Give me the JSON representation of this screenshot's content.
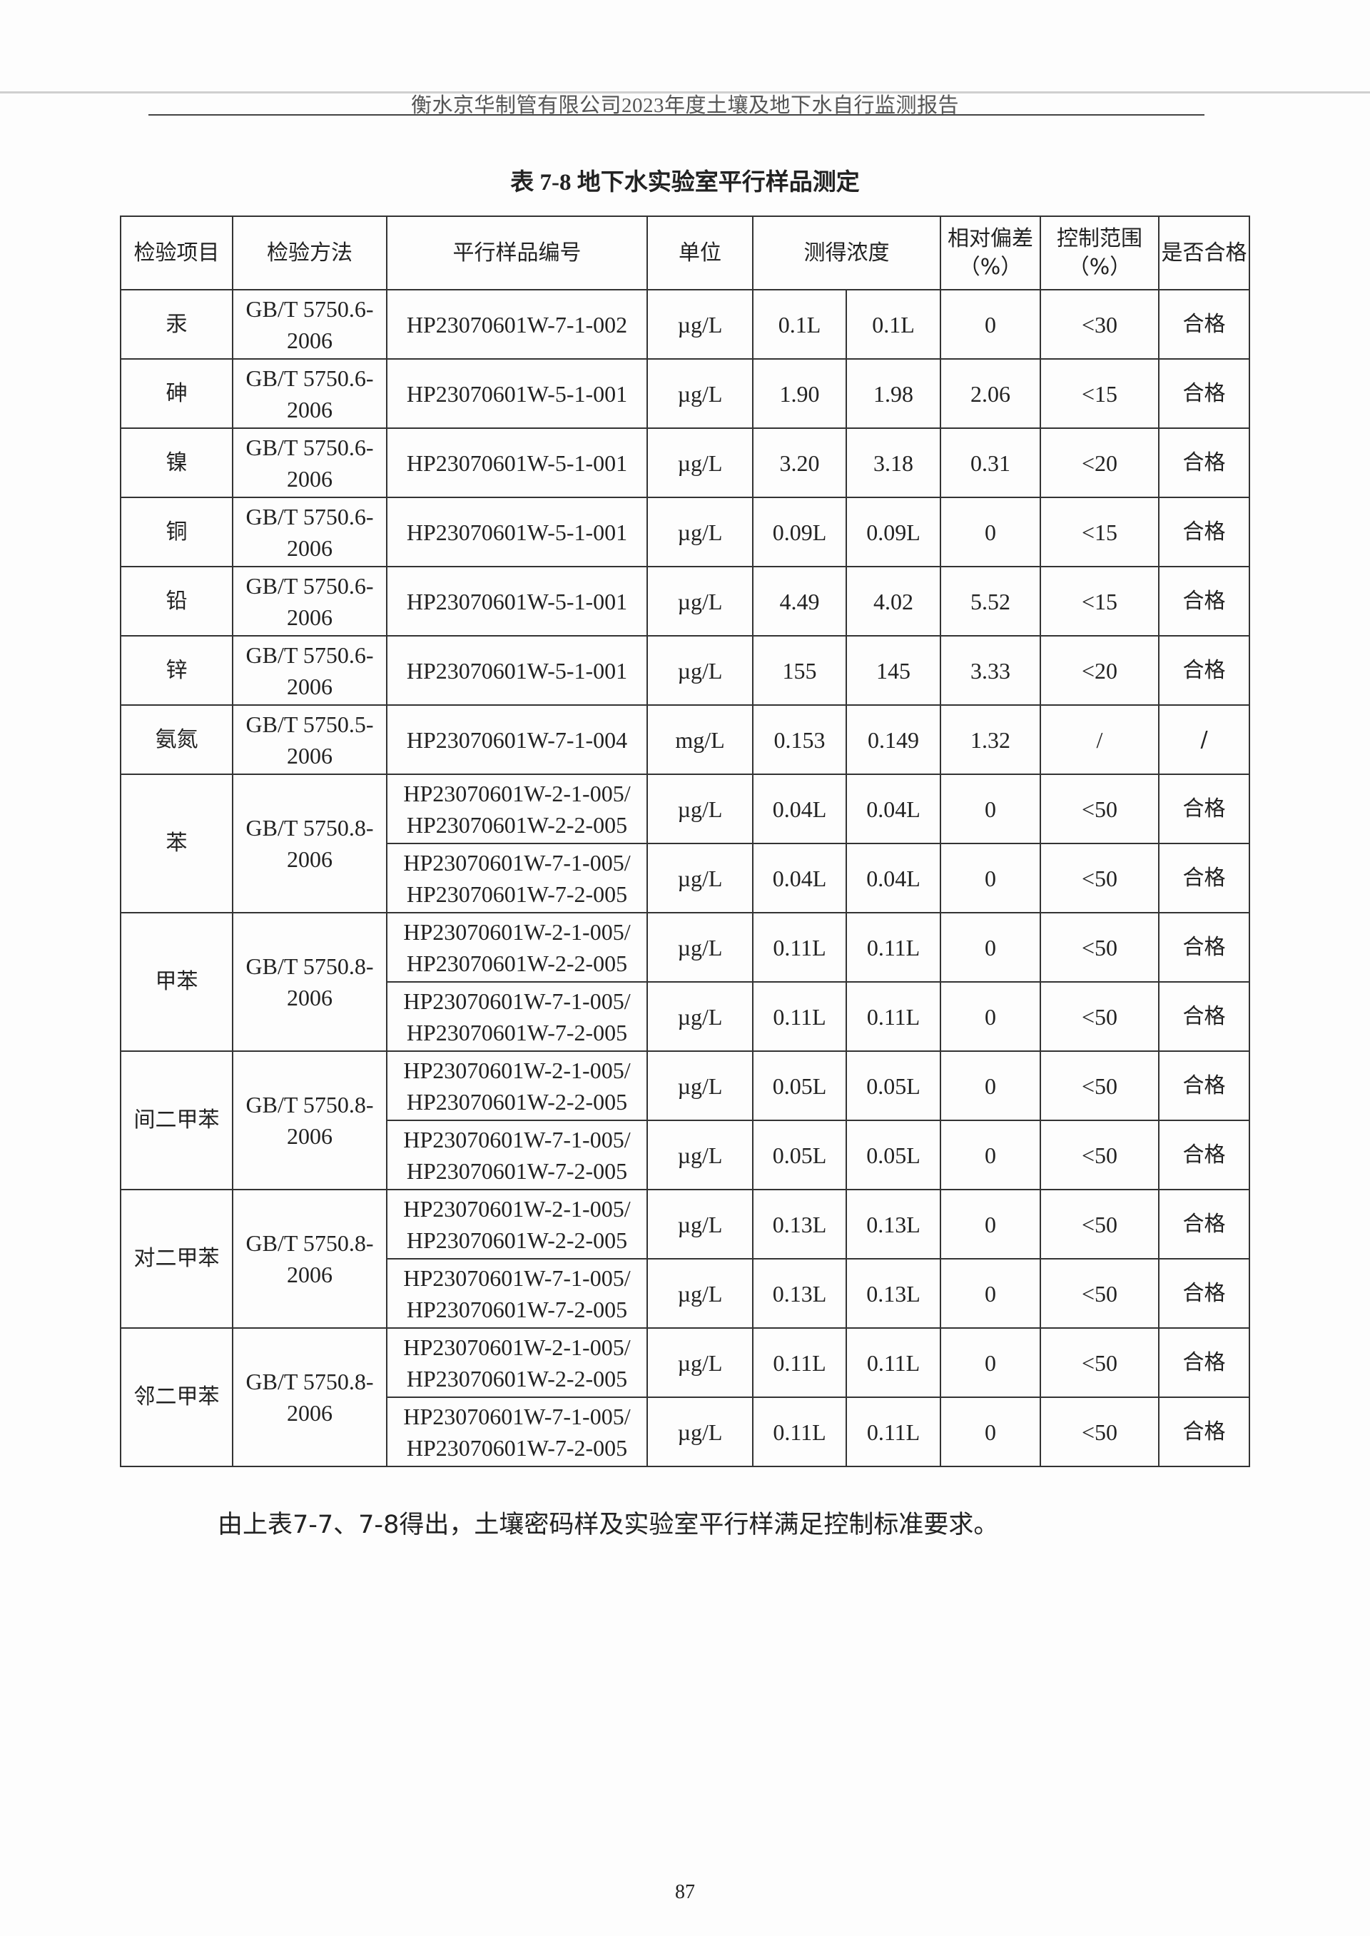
{
  "header": {
    "text": "衡水京华制管有限公司2023年度土壤及地下水自行监测报告"
  },
  "table": {
    "title": "表 7-8   地下水实验室平行样品测定",
    "columns": [
      "检验项目",
      "检验方法",
      "平行样品编号",
      "单位",
      "测得浓度",
      "相对偏差（%）",
      "控制范围（%）",
      "是否合格"
    ],
    "groups": [
      {
        "item": "汞",
        "method": "GB/T 5750.6-2006",
        "rows": [
          {
            "sample": "HP23070601W-7-1-002",
            "unit": "µg/L",
            "c1": "0.1L",
            "c2": "0.1L",
            "rd": "0",
            "range": "<30",
            "pass": "合格"
          }
        ]
      },
      {
        "item": "砷",
        "method": "GB/T 5750.6-2006",
        "rows": [
          {
            "sample": "HP23070601W-5-1-001",
            "unit": "µg/L",
            "c1": "1.90",
            "c2": "1.98",
            "rd": "2.06",
            "range": "<15",
            "pass": "合格"
          }
        ]
      },
      {
        "item": "镍",
        "method": "GB/T 5750.6-2006",
        "rows": [
          {
            "sample": "HP23070601W-5-1-001",
            "unit": "µg/L",
            "c1": "3.20",
            "c2": "3.18",
            "rd": "0.31",
            "range": "<20",
            "pass": "合格"
          }
        ]
      },
      {
        "item": "铜",
        "method": "GB/T 5750.6-2006",
        "rows": [
          {
            "sample": "HP23070601W-5-1-001",
            "unit": "µg/L",
            "c1": "0.09L",
            "c2": "0.09L",
            "rd": "0",
            "range": "<15",
            "pass": "合格"
          }
        ]
      },
      {
        "item": "铅",
        "method": "GB/T 5750.6-2006",
        "rows": [
          {
            "sample": "HP23070601W-5-1-001",
            "unit": "µg/L",
            "c1": "4.49",
            "c2": "4.02",
            "rd": "5.52",
            "range": "<15",
            "pass": "合格"
          }
        ]
      },
      {
        "item": "锌",
        "method": "GB/T 5750.6-2006",
        "rows": [
          {
            "sample": "HP23070601W-5-1-001",
            "unit": "µg/L",
            "c1": "155",
            "c2": "145",
            "rd": "3.33",
            "range": "<20",
            "pass": "合格"
          }
        ]
      },
      {
        "item": "氨氮",
        "method": "GB/T 5750.5-2006",
        "rows": [
          {
            "sample": "HP23070601W-7-1-004",
            "unit": "mg/L",
            "c1": "0.153",
            "c2": "0.149",
            "rd": "1.32",
            "range": "/",
            "pass": "/"
          }
        ]
      },
      {
        "item": "苯",
        "method": "GB/T 5750.8-2006",
        "rows": [
          {
            "sample": "HP23070601W-2-1-005/ HP23070601W-2-2-005",
            "unit": "µg/L",
            "c1": "0.04L",
            "c2": "0.04L",
            "rd": "0",
            "range": "<50",
            "pass": "合格"
          },
          {
            "sample": "HP23070601W-7-1-005/ HP23070601W-7-2-005",
            "unit": "µg/L",
            "c1": "0.04L",
            "c2": "0.04L",
            "rd": "0",
            "range": "<50",
            "pass": "合格"
          }
        ]
      },
      {
        "item": "甲苯",
        "method": "GB/T 5750.8-2006",
        "rows": [
          {
            "sample": "HP23070601W-2-1-005/ HP23070601W-2-2-005",
            "unit": "µg/L",
            "c1": "0.11L",
            "c2": "0.11L",
            "rd": "0",
            "range": "<50",
            "pass": "合格"
          },
          {
            "sample": "HP23070601W-7-1-005/ HP23070601W-7-2-005",
            "unit": "µg/L",
            "c1": "0.11L",
            "c2": "0.11L",
            "rd": "0",
            "range": "<50",
            "pass": "合格"
          }
        ]
      },
      {
        "item": "间二甲苯",
        "method": "GB/T 5750.8-2006",
        "rows": [
          {
            "sample": "HP23070601W-2-1-005/ HP23070601W-2-2-005",
            "unit": "µg/L",
            "c1": "0.05L",
            "c2": "0.05L",
            "rd": "0",
            "range": "<50",
            "pass": "合格"
          },
          {
            "sample": "HP23070601W-7-1-005/ HP23070601W-7-2-005",
            "unit": "µg/L",
            "c1": "0.05L",
            "c2": "0.05L",
            "rd": "0",
            "range": "<50",
            "pass": "合格"
          }
        ]
      },
      {
        "item": "对二甲苯",
        "method": "GB/T 5750.8-2006",
        "rows": [
          {
            "sample": "HP23070601W-2-1-005/ HP23070601W-2-2-005",
            "unit": "µg/L",
            "c1": "0.13L",
            "c2": "0.13L",
            "rd": "0",
            "range": "<50",
            "pass": "合格"
          },
          {
            "sample": "HP23070601W-7-1-005/ HP23070601W-7-2-005",
            "unit": "µg/L",
            "c1": "0.13L",
            "c2": "0.13L",
            "rd": "0",
            "range": "<50",
            "pass": "合格"
          }
        ]
      },
      {
        "item": "邻二甲苯",
        "method": "GB/T 5750.8-2006",
        "rows": [
          {
            "sample": "HP23070601W-2-1-005/ HP23070601W-2-2-005",
            "unit": "µg/L",
            "c1": "0.11L",
            "c2": "0.11L",
            "rd": "0",
            "range": "<50",
            "pass": "合格"
          },
          {
            "sample": "HP23070601W-7-1-005/ HP23070601W-7-2-005",
            "unit": "µg/L",
            "c1": "0.11L",
            "c2": "0.11L",
            "rd": "0",
            "range": "<50",
            "pass": "合格"
          }
        ]
      }
    ]
  },
  "note": "由上表7-7、7-8得出，土壤密码样及实验室平行样满足控制标准要求。",
  "page_number": "87"
}
